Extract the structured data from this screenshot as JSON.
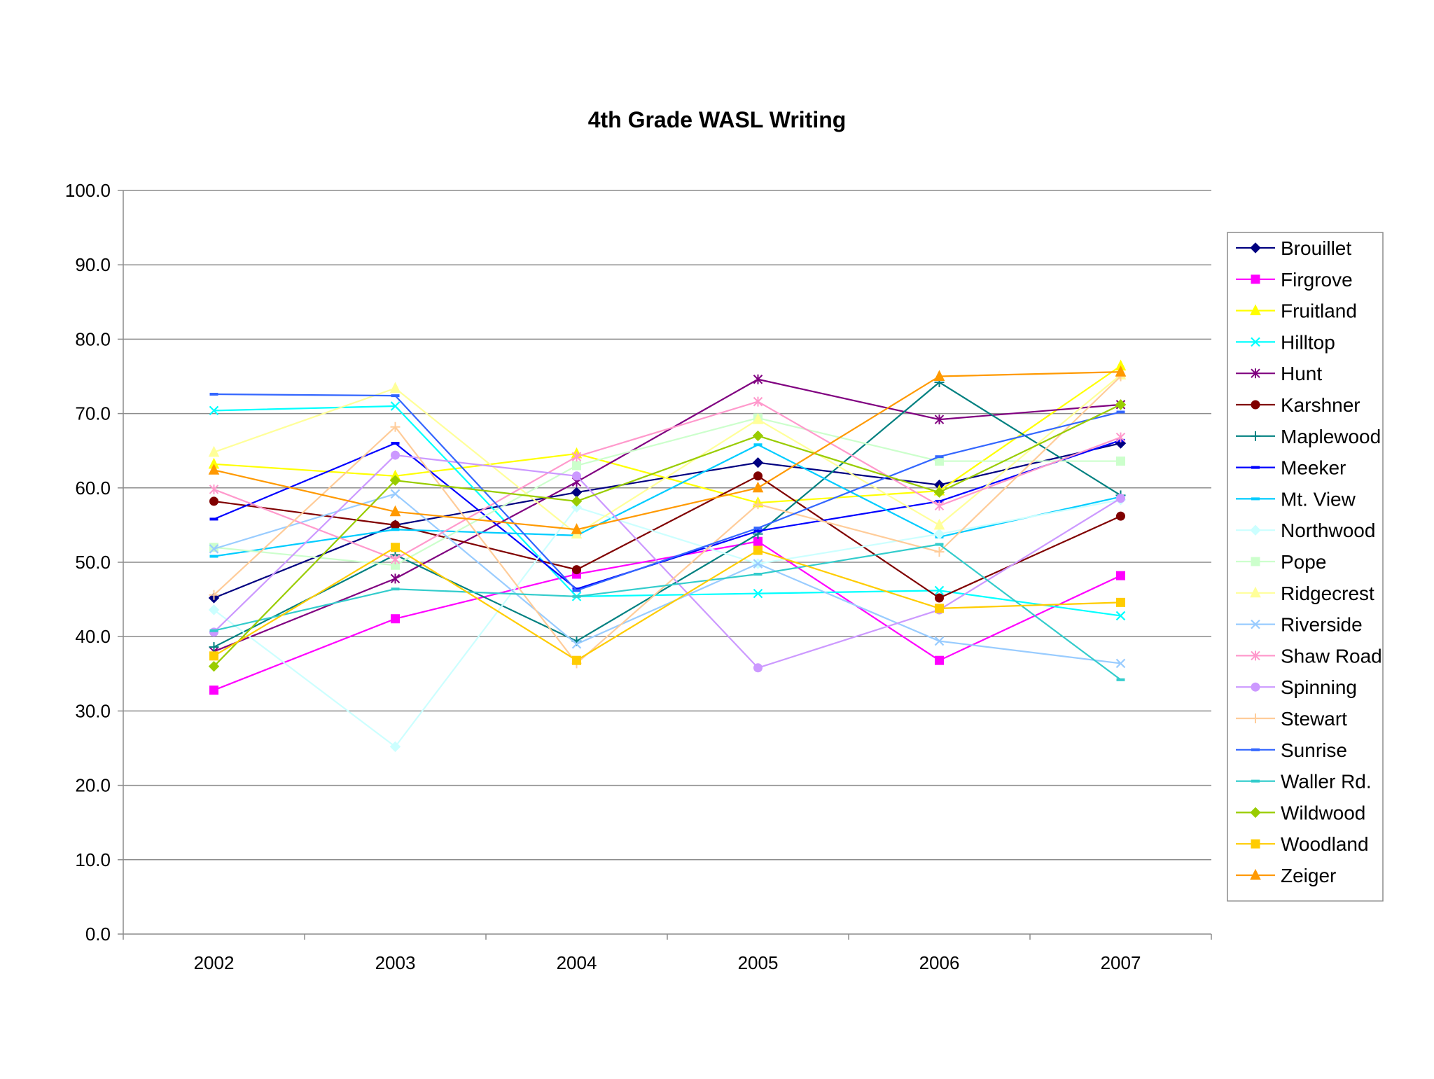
{
  "chart_data": {
    "type": "line",
    "title": "4th Grade WASL Writing",
    "xlabel": "",
    "ylabel": "",
    "categories": [
      "2002",
      "2003",
      "2004",
      "2005",
      "2006",
      "2007"
    ],
    "ylim": [
      0,
      100
    ],
    "yticks": [
      "0.0",
      "10.0",
      "20.0",
      "30.0",
      "40.0",
      "50.0",
      "60.0",
      "70.0",
      "80.0",
      "90.0",
      "100.0"
    ],
    "grid": true,
    "legend_position": "right",
    "series": [
      {
        "name": "Brouillet",
        "color": "#000080",
        "marker": "diamond",
        "values": [
          45.2,
          55.0,
          59.4,
          63.4,
          60.4,
          66.0
        ]
      },
      {
        "name": "Firgrove",
        "color": "#ff00ff",
        "marker": "square",
        "values": [
          32.8,
          42.4,
          48.4,
          52.8,
          36.8,
          48.2
        ]
      },
      {
        "name": "Fruitland",
        "color": "#ffff00",
        "marker": "triangle",
        "values": [
          63.2,
          61.6,
          64.6,
          58.0,
          59.6,
          76.4
        ]
      },
      {
        "name": "Hilltop",
        "color": "#00ffff",
        "marker": "x",
        "values": [
          70.4,
          71.0,
          45.4,
          45.8,
          46.2,
          42.8
        ]
      },
      {
        "name": "Hunt",
        "color": "#800080",
        "marker": "star",
        "values": [
          38.0,
          47.8,
          60.8,
          74.6,
          69.2,
          71.2
        ]
      },
      {
        "name": "Karshner",
        "color": "#800000",
        "marker": "circle",
        "values": [
          58.2,
          55.0,
          49.0,
          61.6,
          45.2,
          56.2
        ]
      },
      {
        "name": "Maplewood",
        "color": "#008080",
        "marker": "plus",
        "values": [
          38.6,
          51.0,
          39.4,
          53.8,
          74.2,
          59.0
        ]
      },
      {
        "name": "Meeker",
        "color": "#0000ff",
        "marker": "dash",
        "values": [
          55.8,
          66.0,
          46.4,
          54.2,
          58.2,
          66.4
        ]
      },
      {
        "name": "Mt. View",
        "color": "#00ccff",
        "marker": "dash",
        "values": [
          50.8,
          54.4,
          53.6,
          65.8,
          53.4,
          58.8
        ]
      },
      {
        "name": "Northwood",
        "color": "#ccffff",
        "marker": "diamond",
        "values": [
          43.6,
          25.2,
          57.4,
          49.8,
          53.8,
          58.4
        ]
      },
      {
        "name": "Pope",
        "color": "#ccffcc",
        "marker": "square",
        "values": [
          52.0,
          49.6,
          63.0,
          69.4,
          63.6,
          63.6
        ]
      },
      {
        "name": "Ridgecrest",
        "color": "#ffff99",
        "marker": "triangle",
        "values": [
          64.8,
          73.4,
          53.8,
          69.2,
          55.0,
          75.2
        ]
      },
      {
        "name": "Riverside",
        "color": "#99ccff",
        "marker": "x",
        "values": [
          51.8,
          59.2,
          39.0,
          49.8,
          39.4,
          36.4
        ]
      },
      {
        "name": "Shaw Road",
        "color": "#ff99cc",
        "marker": "star",
        "values": [
          59.8,
          50.4,
          64.2,
          71.6,
          57.6,
          66.8
        ]
      },
      {
        "name": "Spinning",
        "color": "#cc99ff",
        "marker": "circle",
        "values": [
          40.6,
          64.4,
          61.6,
          35.8,
          43.6,
          58.6
        ]
      },
      {
        "name": "Stewart",
        "color": "#ffcc99",
        "marker": "plus",
        "values": [
          45.6,
          68.2,
          36.4,
          57.8,
          51.4,
          75.0
        ]
      },
      {
        "name": "Sunrise",
        "color": "#3366ff",
        "marker": "dash",
        "values": [
          72.6,
          72.4,
          46.2,
          54.6,
          64.2,
          70.2
        ]
      },
      {
        "name": "Waller Rd.",
        "color": "#33cccc",
        "marker": "dash",
        "values": [
          40.8,
          46.4,
          45.4,
          48.4,
          52.4,
          34.2
        ]
      },
      {
        "name": "Wildwood",
        "color": "#99cc00",
        "marker": "diamond",
        "values": [
          36.0,
          61.0,
          58.2,
          67.0,
          59.4,
          71.2
        ]
      },
      {
        "name": "Woodland",
        "color": "#ffcc00",
        "marker": "square",
        "values": [
          37.4,
          52.0,
          36.8,
          51.6,
          43.8,
          44.6
        ]
      },
      {
        "name": "Zeiger",
        "color": "#ff9900",
        "marker": "triangle",
        "values": [
          62.4,
          56.8,
          54.4,
          60.0,
          75.0,
          75.6
        ]
      }
    ]
  }
}
